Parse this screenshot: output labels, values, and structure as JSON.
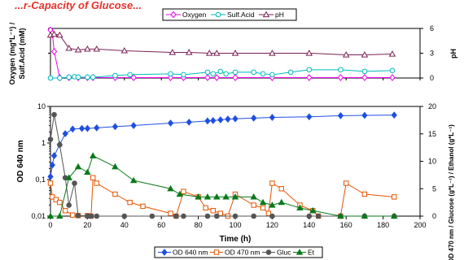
{
  "header_text": "...r-Capacity of Glucose...",
  "chart_data": [
    {
      "type": "line",
      "ylabel_left": "Oxygen (mg*L⁻¹) / Sulf.Acid (mM)",
      "ylabel_left_lines": [
        "Oxygen (mg*L⁻¹) /",
        "Sulf.Acid (mM)"
      ],
      "ylabel_right": "pH",
      "ylim": [
        0,
        6
      ],
      "yticks": [
        0,
        3,
        6
      ],
      "xlim": [
        0,
        200
      ],
      "grid": false,
      "legend_position": "top",
      "legend": [
        "Oxygen",
        "Sulf.Acid",
        "pH"
      ],
      "series": [
        {
          "name": "Oxygen",
          "color": "#ee00ee",
          "marker": "diamond",
          "x": [
            0,
            1,
            2,
            5,
            10,
            15,
            20,
            23,
            35,
            45,
            65,
            72,
            85,
            90,
            100,
            120,
            140,
            157,
            170,
            185
          ],
          "y": [
            5.8,
            5.4,
            3.2,
            0.05,
            0.05,
            0.05,
            0.05,
            0.05,
            0.05,
            0.05,
            0.05,
            0.05,
            0.05,
            0.05,
            0.05,
            0.05,
            0.05,
            0.05,
            0.05,
            0.05
          ]
        },
        {
          "name": "Sulf.Acid",
          "color": "#00bbbb",
          "marker": "circle",
          "x": [
            0,
            5,
            10,
            13,
            15,
            20,
            23,
            35,
            43,
            65,
            72,
            85,
            88,
            92,
            95,
            100,
            110,
            115,
            120,
            130,
            140,
            157,
            170,
            185
          ],
          "y": [
            0,
            0,
            0.1,
            0.15,
            0.1,
            0.1,
            0.1,
            0.3,
            0.4,
            0.5,
            0.4,
            0.7,
            0.5,
            0.8,
            0.5,
            0.7,
            0.7,
            0.5,
            0.4,
            0.7,
            1.0,
            1.0,
            0.8,
            0.9
          ]
        },
        {
          "name": "pH",
          "color": "#7a1f55",
          "marker": "triangle",
          "x": [
            0,
            2,
            5,
            10,
            15,
            20,
            25,
            40,
            66,
            75,
            86,
            90,
            100,
            120,
            140,
            160,
            170,
            185
          ],
          "y": [
            5.2,
            5.3,
            5.2,
            3.6,
            3.4,
            3.5,
            3.5,
            3.3,
            3.1,
            3.1,
            3.0,
            3.0,
            3.0,
            3.0,
            3.0,
            2.8,
            2.8,
            2.9
          ]
        }
      ]
    },
    {
      "type": "line",
      "xlabel": "Time (h)",
      "ylabel_left": "OD 640 nm",
      "ylabel_right": "OD 470 nm / Glucose (g*L⁻¹) / Ethanol (g*L⁻¹)",
      "ylim_left": [
        0.01,
        10
      ],
      "yscale_left": "log",
      "yticks_left": [
        "0,01",
        "0,1",
        "1",
        "10"
      ],
      "ylim_right": [
        0,
        20
      ],
      "yticks_right": [
        0,
        5,
        10,
        15,
        20
      ],
      "xlim": [
        0,
        200
      ],
      "xticks": [
        0,
        20,
        40,
        60,
        80,
        100,
        120,
        140,
        160,
        180,
        200
      ],
      "grid": false,
      "legend_position": "bottom",
      "legend": [
        "OD 640 nm",
        "OD 470 nm",
        "Gluc",
        "Et"
      ],
      "series": [
        {
          "name": "OD 640 nm",
          "axis": "left",
          "color": "#1f4fe0",
          "marker": "diamond",
          "x": [
            0,
            1,
            2,
            5,
            8,
            12,
            17,
            20,
            25,
            35,
            45,
            65,
            75,
            85,
            88,
            92,
            96,
            100,
            110,
            120,
            140,
            157,
            170,
            186
          ],
          "y": [
            0.12,
            0.25,
            0.45,
            0.9,
            1.8,
            2.4,
            2.5,
            2.5,
            2.6,
            2.8,
            3.0,
            3.5,
            3.7,
            4.0,
            4.1,
            4.3,
            4.5,
            4.6,
            4.8,
            5.0,
            5.2,
            5.6,
            5.7,
            5.8
          ]
        },
        {
          "name": "OD 470 nm",
          "axis": "right",
          "color": "#e65400",
          "marker": "square",
          "x": [
            0,
            1,
            3,
            5,
            8,
            12,
            15,
            20,
            22,
            23,
            25,
            35,
            43,
            50,
            65,
            68,
            72,
            80,
            84,
            88,
            92,
            96,
            100,
            110,
            115,
            118,
            120,
            125,
            135,
            142,
            145,
            157,
            160,
            170,
            186
          ],
          "y": [
            6,
            3.5,
            3,
            2.5,
            1,
            0.2,
            0.1,
            0.1,
            0,
            7,
            6,
            4,
            2.5,
            1.8,
            0.5,
            0,
            4.5,
            3.5,
            1.5,
            1,
            0.5,
            0,
            4,
            2,
            1.5,
            0.5,
            6,
            5,
            2,
            1,
            0,
            0,
            6,
            4,
            3.5
          ]
        },
        {
          "name": "Gluc",
          "axis": "right",
          "color": "#555555",
          "marker": "circle",
          "x": [
            0,
            2,
            5,
            8,
            10,
            13,
            15,
            20,
            22,
            25,
            40,
            55,
            68,
            72,
            85,
            90,
            100,
            110,
            120,
            140,
            145,
            157,
            170,
            186
          ],
          "y": [
            14,
            18.5,
            13,
            7,
            2,
            6,
            0.1,
            0,
            0,
            0,
            0,
            0,
            0,
            0,
            0,
            0,
            0,
            0,
            0,
            0,
            0,
            0,
            0,
            0
          ]
        },
        {
          "name": "Et",
          "axis": "right",
          "color": "#0b7a1a",
          "marker": "triangle",
          "x": [
            0,
            5,
            10,
            15,
            20,
            23,
            35,
            45,
            65,
            70,
            80,
            85,
            90,
            95,
            100,
            110,
            115,
            120,
            125,
            135,
            142,
            157,
            170,
            186
          ],
          "y": [
            0,
            0,
            7,
            9,
            8,
            11,
            9,
            6.5,
            5,
            4,
            3.5,
            3.5,
            3.5,
            3.5,
            3.5,
            3.5,
            2.5,
            2,
            2.5,
            1.5,
            1,
            0,
            0,
            0
          ]
        }
      ]
    }
  ]
}
